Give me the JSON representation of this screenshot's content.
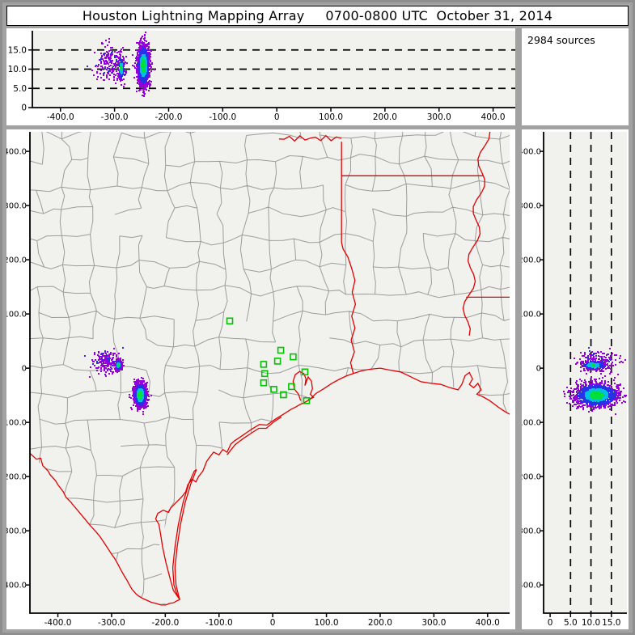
{
  "title": {
    "main": "Houston Lightning Mapping Array",
    "datetime": "0700-0800 UTC  October 31, 2014"
  },
  "sources_label": "2984 sources",
  "colors": {
    "background": "#a2a2a2",
    "panel": "#ffffff",
    "plot_bg": "#f1f1ee",
    "county_line": "#9c9c9c",
    "state_line": "#e00000",
    "station": "#00c400",
    "axis": "#000000",
    "density_scale": [
      "#9600d8",
      "#2830e8",
      "#00c0e0",
      "#00e03c"
    ]
  },
  "chart_data": {
    "type": "scatter",
    "description": "Lightning VHF source locations: plan view map (E-W vs N-S km), altitude vs E-W (top), altitude vs N-S (right)",
    "total_sources": 2984,
    "axes": {
      "ew_tick_labels": [
        "-400.0",
        "-300.0",
        "-200.0",
        "-100.0",
        "0",
        "100.0",
        "200.0",
        "300.0",
        "400.0"
      ],
      "ns_tick_labels": [
        "400.0",
        "300.0",
        "200.0",
        "100.0",
        "0",
        "-100.0",
        "-200.0",
        "-300.0",
        "-400.0"
      ],
      "alt_tick_labels": [
        "0",
        "5.0",
        "10.0",
        "15.0"
      ],
      "ew_range_km": [
        -452,
        441
      ],
      "ns_range_km": [
        -452,
        436
      ],
      "alt_range_km": [
        0,
        20
      ]
    },
    "dash_altitudes_km": [
      5,
      10,
      15
    ],
    "clusters": [
      {
        "name": "main-storm",
        "center_ew_ns": [
          -248,
          -48
        ],
        "sd_ew_ns": [
          5.5,
          11
        ],
        "alt_mean": 11.2,
        "alt_sd": 2.7,
        "count": 1400,
        "style": "dense"
      },
      {
        "name": "west-cell-sparse",
        "center_ew_ns": [
          -312,
          14
        ],
        "sd_ew_ns": [
          12,
          10
        ],
        "alt_mean": 12,
        "alt_sd": 2.4,
        "count": 170,
        "style": "sparse"
      },
      {
        "name": "west-cell-core",
        "center_ew_ns": [
          -289,
          7
        ],
        "sd_ew_ns": [
          3,
          4.5
        ],
        "alt_mean": 10.4,
        "alt_sd": 1.7,
        "count": 210,
        "style": "core"
      }
    ],
    "color_thresholds": {
      "dense": [
        0.6,
        1.05,
        1.7
      ],
      "core": [
        0.33,
        0.85,
        1.5
      ]
    },
    "stations_ew_ns_km": [
      [
        -80,
        87
      ],
      [
        15,
        33
      ],
      [
        38,
        21
      ],
      [
        9,
        13
      ],
      [
        -17,
        7
      ],
      [
        60,
        -7
      ],
      [
        -15,
        -10
      ],
      [
        -17,
        -27
      ],
      [
        35,
        -34
      ],
      [
        2,
        -39
      ],
      [
        20,
        -49
      ],
      [
        63,
        -60
      ]
    ]
  }
}
